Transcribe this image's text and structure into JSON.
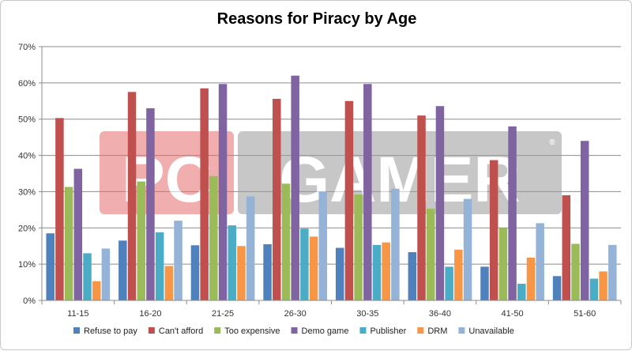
{
  "chart_data": {
    "type": "bar",
    "title": "Reasons for Piracy by Age",
    "xlabel": "",
    "ylabel": "",
    "ylim": [
      0,
      70
    ],
    "yticks": [
      "0%",
      "10%",
      "20%",
      "30%",
      "40%",
      "50%",
      "60%",
      "70%"
    ],
    "grid": true,
    "legend": "bottom",
    "categories": [
      "11-15",
      "16-20",
      "21-25",
      "26-30",
      "30-35",
      "36-40",
      "41-50",
      "51-60"
    ],
    "series": [
      {
        "name": "Refuse to pay",
        "color": "#4f81bd",
        "values": [
          18.5,
          16.5,
          15.2,
          15.5,
          14.5,
          13.3,
          9.3,
          6.7
        ]
      },
      {
        "name": "Can't afford",
        "color": "#c0504d",
        "values": [
          50.3,
          57.5,
          58.5,
          55.6,
          55.0,
          51.0,
          38.7,
          29.0
        ]
      },
      {
        "name": "Too expensive",
        "color": "#9bbb59",
        "values": [
          31.3,
          32.8,
          34.3,
          32.2,
          29.2,
          25.3,
          20.0,
          15.6
        ]
      },
      {
        "name": "Demo game",
        "color": "#8064a2",
        "values": [
          36.3,
          53.0,
          59.7,
          62.0,
          59.7,
          53.6,
          48.0,
          44.0
        ]
      },
      {
        "name": "Publisher",
        "color": "#4bacc6",
        "values": [
          13.0,
          18.8,
          20.7,
          19.8,
          15.3,
          9.3,
          4.6,
          6.0
        ]
      },
      {
        "name": "DRM",
        "color": "#f79646",
        "values": [
          5.3,
          9.5,
          15.0,
          17.6,
          16.0,
          14.0,
          11.8,
          8.0
        ]
      },
      {
        "name": "Unavailable",
        "color": "#95b3d7",
        "values": [
          14.3,
          22.0,
          28.7,
          30.0,
          30.8,
          28.0,
          21.3,
          15.3
        ]
      }
    ]
  },
  "watermark": {
    "part1": "PC",
    "part2": "GAMER",
    "mark": "®"
  }
}
